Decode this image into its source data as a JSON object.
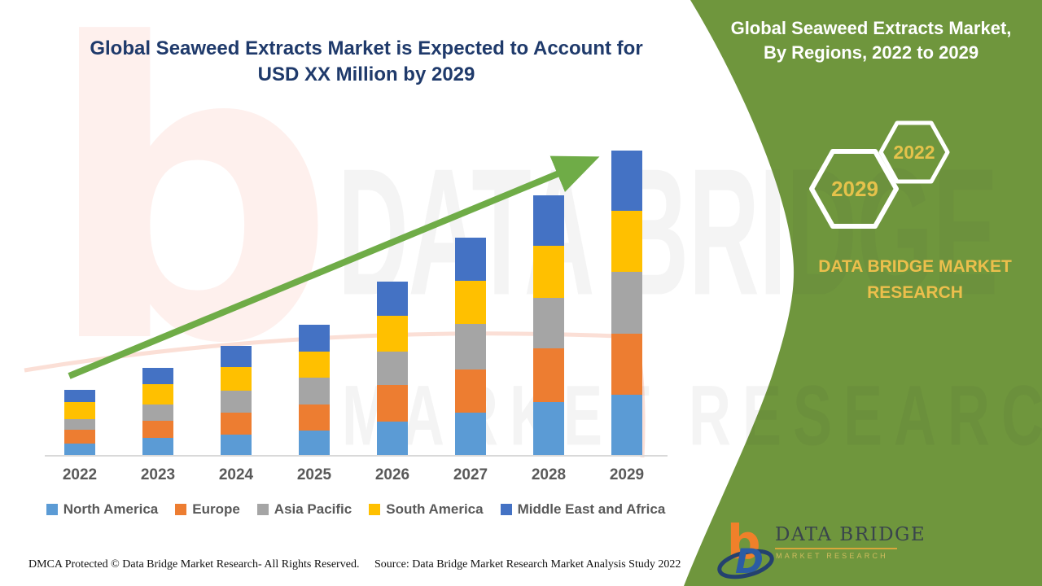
{
  "header": {
    "title_line1": "Global Seaweed Extracts Market is Expected to Account for",
    "title_line2": "USD XX Million by 2029"
  },
  "side_panel": {
    "panel_color": "#6F963D",
    "title_line1": "Global Seaweed Extracts Market,",
    "title_line2": "By Regions, 2022 to 2029",
    "hexagon_back_year": "2022",
    "hexagon_front_year": "2029",
    "brand_line1": "DATA BRIDGE MARKET",
    "brand_line2": "RESEARCH",
    "gold_color": "#E5C24B"
  },
  "chart_data": {
    "type": "bar",
    "stacked": true,
    "title": "Global Seaweed Extracts Market is Expected to Account for USD XX Million by 2029",
    "xlabel": "",
    "ylabel": "",
    "value_axis_visible": false,
    "units": "USD Million (values masked as XX in source)",
    "legend_position": "bottom",
    "trend_arrow": true,
    "trend_arrow_color": "#6FAC47",
    "categories": [
      "2022",
      "2023",
      "2024",
      "2025",
      "2026",
      "2027",
      "2028",
      "2029"
    ],
    "series": [
      {
        "name": "North America",
        "color": "#5B9BD5",
        "values": [
          14,
          21,
          25,
          30,
          41,
          52,
          65,
          74
        ]
      },
      {
        "name": "Europe",
        "color": "#ED7D31",
        "values": [
          17,
          21,
          27,
          32,
          45,
          53,
          66,
          75
        ]
      },
      {
        "name": "Asia Pacific",
        "color": "#A5A5A5",
        "values": [
          13,
          20,
          27,
          33,
          41,
          56,
          62,
          76
        ]
      },
      {
        "name": "South America",
        "color": "#FFC000",
        "values": [
          21,
          25,
          29,
          32,
          44,
          53,
          64,
          75
        ]
      },
      {
        "name": "Middle East and Africa",
        "color": "#4472C4",
        "values": [
          15,
          20,
          26,
          33,
          42,
          53,
          62,
          74
        ]
      }
    ]
  },
  "watermark": {
    "letter": "b",
    "line1": "DATA BRIDGE",
    "line2": "MARKET RESEARCH"
  },
  "logo": {
    "monogram_b": "b",
    "monogram_d": "D",
    "name": "DATA BRIDGE",
    "subtitle": "MARKET RESEARCH"
  },
  "footer": {
    "left": "DMCA Protected © Data Bridge Market Research- All Rights Reserved.",
    "source": "Source: Data Bridge Market Research Market Analysis Study 2022"
  }
}
